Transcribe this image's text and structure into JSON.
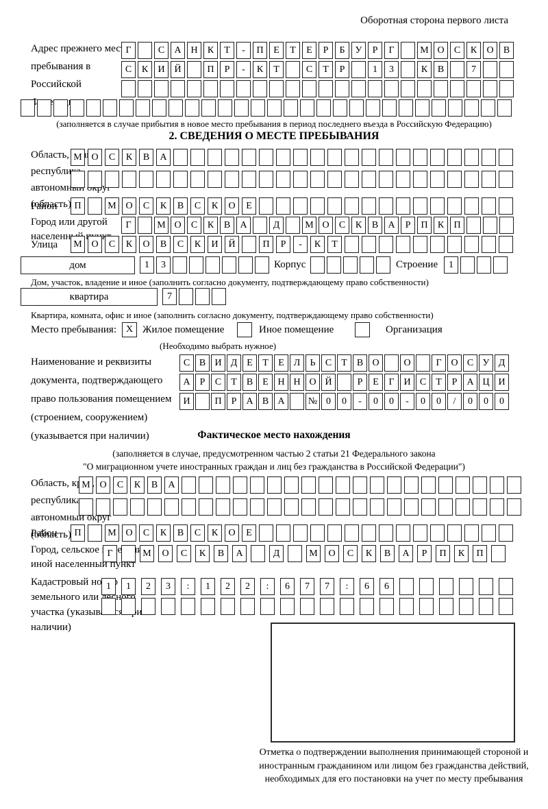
{
  "header": {
    "note": "Оборотная сторона первого листа"
  },
  "prev_address": {
    "label": "Адрес прежнего места пребывания в Российской Федерации",
    "row1": [
      "Г",
      "",
      "С",
      "А",
      "Н",
      "К",
      "Т",
      "-",
      "П",
      "Е",
      "Т",
      "Е",
      "Р",
      "Б",
      "У",
      "Р",
      "Г",
      "",
      "М",
      "О",
      "С",
      "К",
      "О",
      "В"
    ],
    "row2": [
      "С",
      "К",
      "И",
      "Й",
      "",
      "П",
      "Р",
      "-",
      "К",
      "Т",
      "",
      "С",
      "Т",
      "Р",
      "",
      "1",
      "3",
      "",
      "К",
      "В",
      "",
      "7",
      "",
      ""
    ],
    "row3": [
      "",
      "",
      "",
      "",
      "",
      "",
      "",
      "",
      "",
      "",
      "",
      "",
      "",
      "",
      "",
      "",
      "",
      "",
      "",
      "",
      "",
      "",
      "",
      ""
    ],
    "row4": [
      "",
      "",
      "",
      "",
      "",
      "",
      "",
      "",
      "",
      "",
      "",
      "",
      "",
      "",
      "",
      "",
      "",
      "",
      "",
      "",
      "",
      "",
      "",
      "",
      "",
      "",
      "",
      "",
      "",
      ""
    ],
    "note": "(заполняется в случае прибытия в новое место пребывания в период последнего въезда в Российскую Федерацию)"
  },
  "section2": {
    "title": "2. СВЕДЕНИЯ О МЕСТЕ ПРЕБЫВАНИЯ",
    "region": {
      "label": "Область, край, республика, автономный округ (область)",
      "row1": [
        "М",
        "О",
        "С",
        "К",
        "В",
        "А",
        "",
        "",
        "",
        "",
        "",
        "",
        "",
        "",
        "",
        "",
        "",
        "",
        "",
        "",
        "",
        "",
        "",
        "",
        "",
        ""
      ],
      "row2": [
        "",
        "",
        "",
        "",
        "",
        "",
        "",
        "",
        "",
        "",
        "",
        "",
        "",
        "",
        "",
        "",
        "",
        "",
        "",
        "",
        "",
        "",
        "",
        "",
        "",
        ""
      ]
    },
    "district": {
      "label": "Район",
      "row": [
        "П",
        "",
        "М",
        "О",
        "С",
        "К",
        "В",
        "С",
        "К",
        "О",
        "Е",
        "",
        "",
        "",
        "",
        "",
        "",
        "",
        "",
        "",
        "",
        "",
        "",
        "",
        "",
        ""
      ]
    },
    "city": {
      "label": "Город или другой населенный пункт",
      "row": [
        "Г",
        "",
        "М",
        "О",
        "С",
        "К",
        "В",
        "А",
        "",
        "Д",
        "",
        "М",
        "О",
        "С",
        "К",
        "В",
        "А",
        "Р",
        "П",
        "К",
        "П",
        "",
        "",
        ""
      ]
    },
    "street": {
      "label": "Улица",
      "row": [
        "М",
        "О",
        "С",
        "К",
        "О",
        "В",
        "С",
        "К",
        "И",
        "Й",
        "",
        "П",
        "Р",
        "-",
        "К",
        "Т",
        "",
        "",
        "",
        "",
        "",
        "",
        "",
        "",
        "",
        ""
      ]
    },
    "house": {
      "box_label": "дом",
      "cells": [
        "1",
        "3",
        "",
        "",
        "",
        "",
        "",
        ""
      ],
      "korpus_label": "Корпус",
      "korpus_cells": [
        "",
        "",
        "",
        "",
        ""
      ],
      "stroenie_label": "Строение",
      "stroenie_cells": [
        "1",
        "",
        "",
        ""
      ],
      "note": "Дом, участок, владение и иное (заполнить согласно документу, подтверждающему право собственности)"
    },
    "apartment": {
      "box_label": "квартира",
      "cells": [
        "7",
        "",
        "",
        ""
      ],
      "note": "Квартира, комната, офис и иное (заполнить согласно документу, подтверждающему право собственности)"
    },
    "stay_type": {
      "label": "Место пребывания:",
      "options": [
        {
          "label": "Жилое помещение",
          "mark": "X"
        },
        {
          "label": "Иное помещение",
          "mark": ""
        },
        {
          "label": "Организация",
          "mark": ""
        }
      ],
      "note": "(Необходимо выбрать нужное)"
    },
    "document": {
      "label": "Наименование и реквизиты документа, подтверждающего право пользования помещением (строением, сооружением) (указывается при наличии)",
      "row1": [
        "С",
        "В",
        "И",
        "Д",
        "Е",
        "Т",
        "Е",
        "Л",
        "Ь",
        "С",
        "Т",
        "В",
        "О",
        "",
        "О",
        "",
        "Г",
        "О",
        "С",
        "У",
        "Д"
      ],
      "row2": [
        "А",
        "Р",
        "С",
        "Т",
        "В",
        "Е",
        "Н",
        "Н",
        "О",
        "Й",
        "",
        "Р",
        "Е",
        "Г",
        "И",
        "С",
        "Т",
        "Р",
        "А",
        "Ц",
        "И"
      ],
      "row3": [
        "И",
        "",
        "П",
        "Р",
        "А",
        "В",
        "А",
        "",
        "№",
        "0",
        "0",
        "-",
        "0",
        "0",
        "-",
        "0",
        "0",
        "/",
        "0",
        "0",
        "0"
      ]
    }
  },
  "actual_location": {
    "title": "Фактическое место нахождения",
    "note_line1": "(заполняется в случае, предусмотренном частью 2 статьи 21 Федерального закона",
    "note_line2": "\"О миграционном учете иностранных граждан и лиц без гражданства в Российской Федерации\")",
    "region": {
      "label": "Область, край, республика, автономный округ (область)",
      "row1": [
        "М",
        "О",
        "С",
        "К",
        "В",
        "А",
        "",
        "",
        "",
        "",
        "",
        "",
        "",
        "",
        "",
        "",
        "",
        "",
        "",
        "",
        "",
        "",
        "",
        "",
        "",
        ""
      ],
      "row2": [
        "",
        "",
        "",
        "",
        "",
        "",
        "",
        "",
        "",
        "",
        "",
        "",
        "",
        "",
        "",
        "",
        "",
        "",
        "",
        "",
        "",
        "",
        "",
        "",
        "",
        ""
      ]
    },
    "district": {
      "label": "Район",
      "row": [
        "П",
        "",
        "М",
        "О",
        "С",
        "К",
        "В",
        "С",
        "К",
        "О",
        "Е",
        "",
        "",
        "",
        "",
        "",
        "",
        "",
        "",
        "",
        "",
        "",
        "",
        "",
        "",
        ""
      ]
    },
    "city": {
      "label": "Город, сельское поселение, иной населенный пункт",
      "row": [
        "Г",
        "",
        "М",
        "О",
        "С",
        "К",
        "В",
        "А",
        "",
        "Д",
        "",
        "М",
        "О",
        "С",
        "К",
        "В",
        "А",
        "Р",
        "П",
        "К",
        "П",
        ""
      ]
    },
    "cadastral": {
      "label": "Кадастровый номер земельного или лесного участка (указывается при наличии)",
      "row1": [
        "1",
        "1",
        "2",
        "3",
        ":",
        "1",
        "2",
        "2",
        ":",
        "6",
        "7",
        "7",
        ":",
        "6",
        "6",
        "",
        "",
        "",
        "",
        "",
        ""
      ],
      "row2": [
        "",
        "",
        "",
        "",
        "",
        "",
        "",
        "",
        "",
        "",
        "",
        "",
        "",
        "",
        "",
        "",
        "",
        "",
        "",
        "",
        ""
      ]
    },
    "stamp_note": "Отметка о подтверждении выполнения принимающей стороной и иностранным гражданином или лицом без гражданства действий, необходимых для его постановки на учет по месту пребывания"
  }
}
